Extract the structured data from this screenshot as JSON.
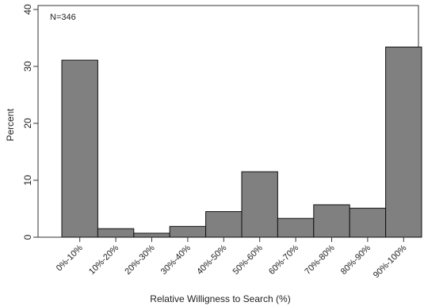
{
  "chart_data": {
    "type": "bar",
    "annotation": "N=346",
    "xlabel": "Relative Willigness to Search (%)",
    "ylabel": "Percent",
    "ylim": [
      0,
      40
    ],
    "yticks": [
      "0",
      "10",
      "20",
      "30",
      "40"
    ],
    "categories": [
      "0%-10%",
      "10%-20%",
      "20%-30%",
      "30%-40%",
      "40%-50%",
      "50%-60%",
      "60%-70%",
      "70%-80%",
      "80%-90%",
      "90%-100%"
    ],
    "values": [
      31.1,
      1.5,
      0.7,
      1.9,
      4.5,
      11.5,
      3.3,
      5.7,
      5.1,
      33.4
    ],
    "bar_color": "#808080",
    "grid": false,
    "legend": "none"
  }
}
